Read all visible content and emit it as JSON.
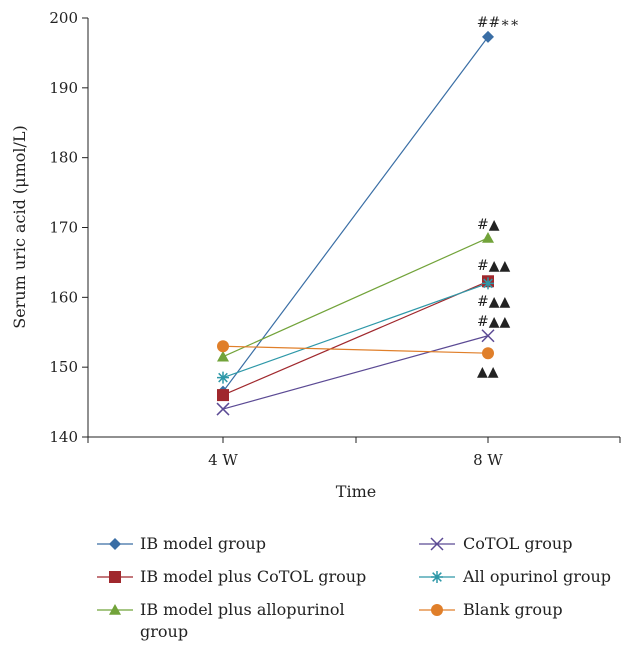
{
  "chart_data": {
    "type": "line",
    "title": "",
    "xlabel": "Time",
    "ylabel": "Serum uric acid (μmol/L)",
    "categories": [
      "4 W",
      "8 W"
    ],
    "ylim": [
      140,
      200
    ],
    "yticks": [
      "140",
      "150",
      "160",
      "170",
      "180",
      "190",
      "200"
    ],
    "grid": false,
    "legend_position": "bottom",
    "series": [
      {
        "name": "IB model group",
        "values": [
          146.5,
          197.3
        ],
        "color": "#3a6ea5",
        "marker": "diamond",
        "annotation": "##∗∗"
      },
      {
        "name": "IB model plus CoTOL group",
        "values": [
          146.0,
          162.3
        ],
        "color": "#a0282d",
        "marker": "square",
        "annotation": "#▲▲"
      },
      {
        "name": "IB model plus allopurinol group",
        "values": [
          151.5,
          168.5
        ],
        "color": "#72a33a",
        "marker": "triangle",
        "annotation": "#▲"
      },
      {
        "name": "CoTOL group",
        "values": [
          144.0,
          154.5
        ],
        "color": "#5b4a94",
        "marker": "x",
        "annotation": "#▲▲"
      },
      {
        "name": "All opurinol group",
        "values": [
          148.5,
          162.0
        ],
        "color": "#2e98a8",
        "marker": "star",
        "annotation": "#▲▲"
      },
      {
        "name": "Blank group",
        "values": [
          153.0,
          152.0
        ],
        "color": "#e07f2a",
        "marker": "circle",
        "annotation": "▲▲"
      }
    ]
  }
}
